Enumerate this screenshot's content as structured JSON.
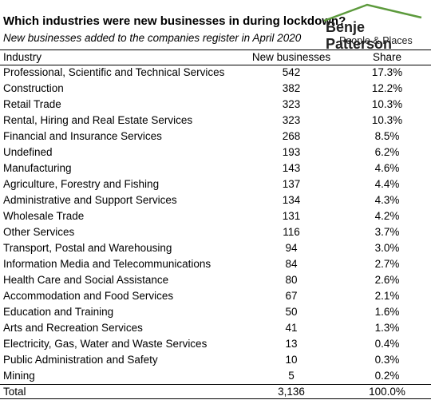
{
  "header": {
    "title": "Which industries were new businesses in during lockdown?",
    "subtitle": "New businesses added to the companies register in April 2020"
  },
  "logo": {
    "name": "Benje Patterson",
    "tagline": "People & Places"
  },
  "table": {
    "columns": [
      "Industry",
      "New businesses",
      "Share"
    ],
    "rows": [
      [
        "Professional, Scientific and Technical Services",
        "542",
        "17.3%"
      ],
      [
        "Construction",
        "382",
        "12.2%"
      ],
      [
        "Retail Trade",
        "323",
        "10.3%"
      ],
      [
        "Rental, Hiring and Real Estate Services",
        "323",
        "10.3%"
      ],
      [
        "Financial and Insurance Services",
        "268",
        "8.5%"
      ],
      [
        "Undefined",
        "193",
        "6.2%"
      ],
      [
        "Manufacturing",
        "143",
        "4.6%"
      ],
      [
        "Agriculture, Forestry and Fishing",
        "137",
        "4.4%"
      ],
      [
        "Administrative and Support Services",
        "134",
        "4.3%"
      ],
      [
        "Wholesale Trade",
        "131",
        "4.2%"
      ],
      [
        "Other Services",
        "116",
        "3.7%"
      ],
      [
        "Transport, Postal and Warehousing",
        "94",
        "3.0%"
      ],
      [
        "Information Media and Telecommunications",
        "84",
        "2.7%"
      ],
      [
        "Health Care and Social Assistance",
        "80",
        "2.6%"
      ],
      [
        "Accommodation and Food Services",
        "67",
        "2.1%"
      ],
      [
        "Education and Training",
        "50",
        "1.6%"
      ],
      [
        "Arts and Recreation Services",
        "41",
        "1.3%"
      ],
      [
        "Electricity, Gas, Water and Waste Services",
        "13",
        "0.4%"
      ],
      [
        "Public Administration and Safety",
        "10",
        "0.3%"
      ],
      [
        "Mining",
        "5",
        "0.2%"
      ]
    ],
    "total": [
      "Total",
      "3,136",
      "100.0%"
    ]
  }
}
